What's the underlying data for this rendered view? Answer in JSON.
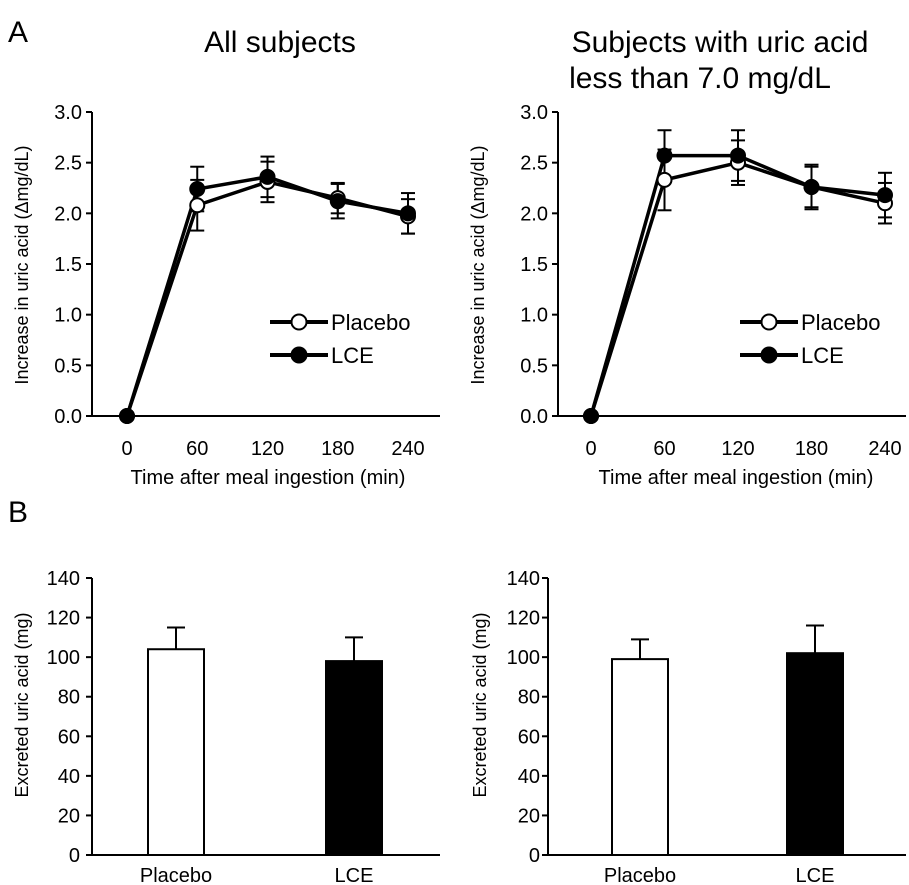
{
  "panels": {
    "A": "A",
    "B": "B"
  },
  "chart_data": [
    {
      "id": "A1",
      "type": "line",
      "title": "All subjects",
      "xlabel": "Time after meal ingestion (min)",
      "ylabel": "Increase in uric acid (Δmg/dL)",
      "x": [
        0,
        60,
        120,
        180,
        240
      ],
      "xticks": [
        "0",
        "60",
        "120",
        "180",
        "240"
      ],
      "yticks": [
        "0.0",
        "0.5",
        "1.0",
        "1.5",
        "2.0",
        "2.5",
        "3.0"
      ],
      "ylim": [
        0,
        3.0
      ],
      "legend_position": "right",
      "series": [
        {
          "name": "Placebo",
          "marker": "open-circle",
          "values": [
            0.0,
            2.08,
            2.31,
            2.15,
            1.97
          ],
          "error": [
            0,
            0.25,
            0.2,
            0.15,
            0.17
          ]
        },
        {
          "name": "LCE",
          "marker": "filled-circle",
          "values": [
            0.0,
            2.24,
            2.36,
            2.12,
            2.0
          ],
          "error": [
            0,
            0.22,
            0.2,
            0.17,
            0.2
          ]
        }
      ]
    },
    {
      "id": "A2",
      "type": "line",
      "title": "Subjects with uric acid less than 7.0 mg/dL",
      "title_lines": [
        "Subjects with uric acid",
        "less than 7.0 mg/dL"
      ],
      "xlabel": "Time after meal ingestion (min)",
      "ylabel": "Increase in uric acid (Δmg/dL)",
      "x": [
        0,
        60,
        120,
        180,
        240
      ],
      "xticks": [
        "0",
        "60",
        "120",
        "180",
        "240"
      ],
      "yticks": [
        "0.0",
        "0.5",
        "1.0",
        "1.5",
        "2.0",
        "2.5",
        "3.0"
      ],
      "ylim": [
        0,
        3.0
      ],
      "legend_position": "right",
      "series": [
        {
          "name": "Placebo",
          "marker": "open-circle",
          "values": [
            0.0,
            2.33,
            2.5,
            2.26,
            2.1
          ],
          "error": [
            0,
            0.3,
            0.22,
            0.2,
            0.2
          ]
        },
        {
          "name": "LCE",
          "marker": "filled-circle",
          "values": [
            0.0,
            2.57,
            2.57,
            2.26,
            2.18
          ],
          "error": [
            0,
            0.25,
            0.25,
            0.22,
            0.22
          ]
        }
      ]
    },
    {
      "id": "B1",
      "type": "bar",
      "ylabel": "Excreted uric acid (mg)",
      "categories": [
        "Placebo",
        "LCE"
      ],
      "values": [
        104,
        98
      ],
      "error": [
        11,
        12
      ],
      "colors": [
        "#ffffff",
        "#000000"
      ],
      "yticks": [
        "0",
        "20",
        "40",
        "60",
        "80",
        "100",
        "120",
        "140"
      ],
      "ylim": [
        0,
        140
      ]
    },
    {
      "id": "B2",
      "type": "bar",
      "ylabel": "Excreted uric acid (mg)",
      "categories": [
        "Placebo",
        "LCE"
      ],
      "values": [
        99,
        102
      ],
      "error": [
        10,
        14
      ],
      "colors": [
        "#ffffff",
        "#000000"
      ],
      "yticks": [
        "0",
        "20",
        "40",
        "60",
        "80",
        "100",
        "120",
        "140"
      ],
      "ylim": [
        0,
        140
      ]
    }
  ]
}
